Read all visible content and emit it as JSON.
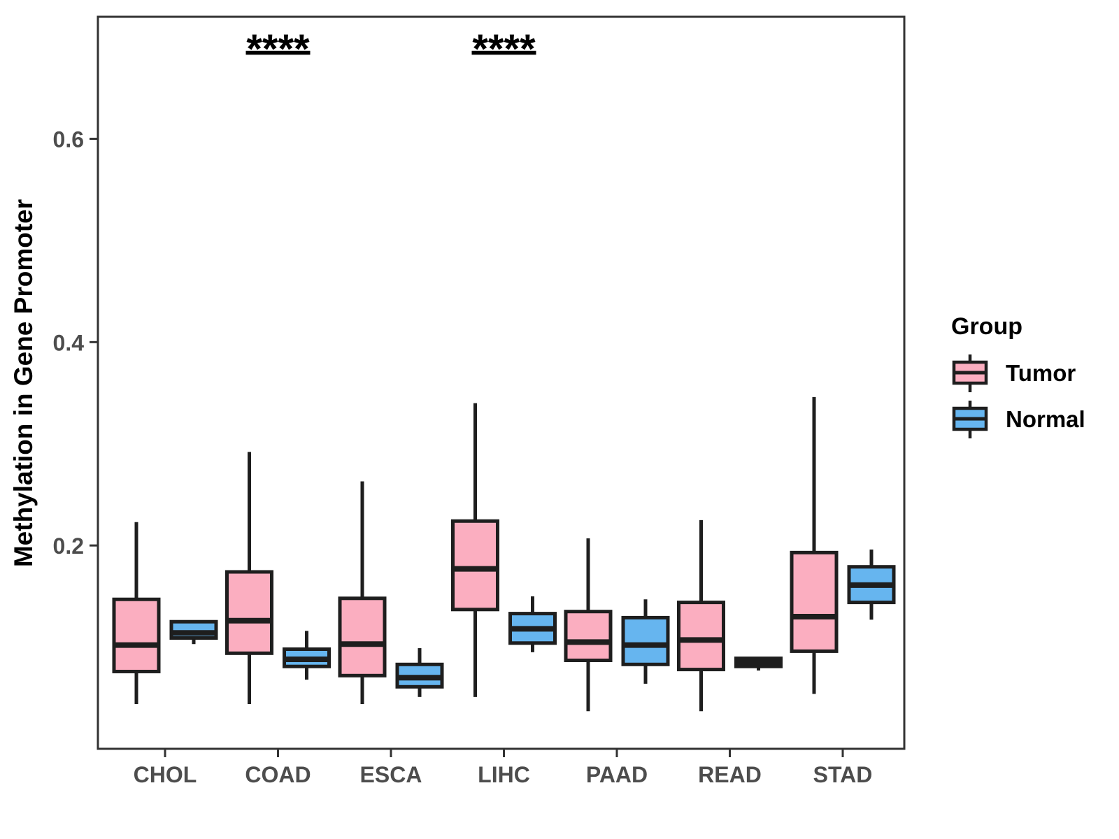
{
  "figure": {
    "background": "#FFFFFF"
  },
  "legend": {
    "title": "Group",
    "items": [
      {
        "label": "Tumor",
        "color": "#FBAEC0"
      },
      {
        "label": "Normal",
        "color": "#66B5EF"
      }
    ]
  },
  "chart_data": {
    "type": "boxplot",
    "title": "",
    "xlabel": "",
    "ylabel": "Methylation in Gene Promoter",
    "categories": [
      "CHOL",
      "COAD",
      "ESCA",
      "LIHC",
      "PAAD",
      "READ",
      "STAD"
    ],
    "y_ticks": [
      0.2,
      0.4,
      0.6
    ],
    "y_tick_labels": [
      "0.2",
      "0.4",
      "0.6"
    ],
    "ylim": [
      0,
      0.72
    ],
    "grid": false,
    "legend_position": "right",
    "colors": {
      "box_stroke": "#1E1E1E",
      "axis": "#333333",
      "tick_label": "#4D4D4D",
      "significance": "#000000"
    },
    "series": [
      {
        "name": "Tumor",
        "color": "#FBAEC0",
        "boxes": [
          {
            "category": "CHOL",
            "low": 0.044,
            "q1": 0.076,
            "median": 0.102,
            "q3": 0.147,
            "high": 0.223
          },
          {
            "category": "COAD",
            "low": 0.044,
            "q1": 0.094,
            "median": 0.126,
            "q3": 0.174,
            "high": 0.292
          },
          {
            "category": "ESCA",
            "low": 0.044,
            "q1": 0.072,
            "median": 0.103,
            "q3": 0.148,
            "high": 0.263
          },
          {
            "category": "LIHC",
            "low": 0.051,
            "q1": 0.137,
            "median": 0.177,
            "q3": 0.224,
            "high": 0.34
          },
          {
            "category": "PAAD",
            "low": 0.037,
            "q1": 0.087,
            "median": 0.105,
            "q3": 0.135,
            "high": 0.207
          },
          {
            "category": "READ",
            "low": 0.037,
            "q1": 0.078,
            "median": 0.107,
            "q3": 0.144,
            "high": 0.225
          },
          {
            "category": "STAD",
            "low": 0.054,
            "q1": 0.096,
            "median": 0.13,
            "q3": 0.193,
            "high": 0.346
          }
        ]
      },
      {
        "name": "Normal",
        "color": "#66B5EF",
        "boxes": [
          {
            "category": "CHOL",
            "low": 0.103,
            "q1": 0.109,
            "median": 0.114,
            "q3": 0.125,
            "high": 0.125
          },
          {
            "category": "COAD",
            "low": 0.068,
            "q1": 0.081,
            "median": 0.088,
            "q3": 0.098,
            "high": 0.116
          },
          {
            "category": "ESCA",
            "low": 0.051,
            "q1": 0.061,
            "median": 0.07,
            "q3": 0.083,
            "high": 0.099
          },
          {
            "category": "LIHC",
            "low": 0.095,
            "q1": 0.104,
            "median": 0.118,
            "q3": 0.133,
            "high": 0.15
          },
          {
            "category": "PAAD",
            "low": 0.064,
            "q1": 0.083,
            "median": 0.102,
            "q3": 0.129,
            "high": 0.147
          },
          {
            "category": "READ",
            "low": 0.077,
            "q1": 0.081,
            "median": 0.085,
            "q3": 0.089,
            "high": 0.089
          },
          {
            "category": "STAD",
            "low": 0.127,
            "q1": 0.144,
            "median": 0.161,
            "q3": 0.179,
            "high": 0.196
          }
        ]
      }
    ],
    "significance": [
      {
        "category": "COAD",
        "label": "****"
      },
      {
        "category": "LIHC",
        "label": "****"
      }
    ]
  }
}
